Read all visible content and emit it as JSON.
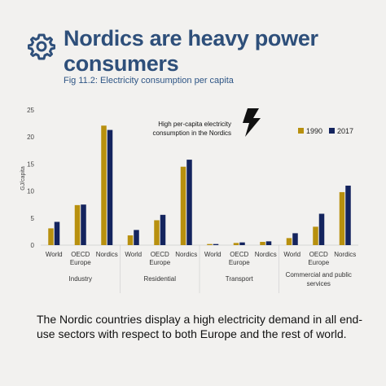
{
  "header": {
    "title": "Nordics are heavy power consumers",
    "subtitle": "Fig 11.2: Electricity consumption per capita",
    "icon": "gear-icon"
  },
  "caption": "The Nordic countries display a high electricity demand in all end-use sectors with respect to both Europe and the rest of world.",
  "colors": {
    "series_1990": "#b8900e",
    "series_2017": "#14245e",
    "title": "#2e4f7a"
  },
  "chart_data": {
    "type": "bar",
    "ylabel": "GJ/capita",
    "ylim": [
      0,
      25
    ],
    "yticks": [
      0,
      5,
      10,
      15,
      20,
      25
    ],
    "legend_position": "top-right",
    "annotation": "High per-capita electricity consumption in the Nordics",
    "annotation_icon": "lightning-icon",
    "groups": [
      {
        "label": "Industry",
        "categories": [
          "World",
          "OECD Europe",
          "Nordics"
        ]
      },
      {
        "label": "Residential",
        "categories": [
          "World",
          "OECD Europe",
          "Nordics"
        ]
      },
      {
        "label": "Transport",
        "categories": [
          "World",
          "OECD Europe",
          "Nordics"
        ]
      },
      {
        "label": "Commercial and public services",
        "categories": [
          "World",
          "OECD Europe",
          "Nordics"
        ]
      }
    ],
    "series": [
      {
        "name": "1990",
        "color": "#b8900e",
        "values": [
          3.1,
          7.4,
          22.1,
          1.8,
          4.6,
          14.5,
          0.2,
          0.4,
          0.6,
          1.3,
          3.4,
          9.8
        ]
      },
      {
        "name": "2017",
        "color": "#14245e",
        "values": [
          4.3,
          7.5,
          21.3,
          2.8,
          5.6,
          15.8,
          0.2,
          0.5,
          0.7,
          2.2,
          5.8,
          11.0
        ]
      }
    ]
  }
}
